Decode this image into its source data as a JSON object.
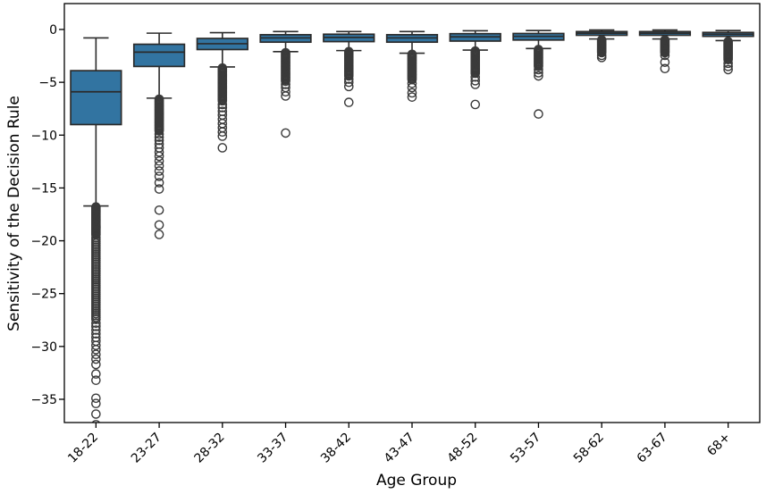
{
  "chart_data": {
    "type": "box",
    "title": "",
    "xlabel": "Age Group",
    "ylabel": "Sensitivity of the Decision Rule",
    "categories": [
      "18-22",
      "23-27",
      "28-32",
      "33-37",
      "38-42",
      "43-47",
      "48-52",
      "53-57",
      "58-62",
      "63-67",
      "68+"
    ],
    "ylim": [
      -37.2,
      2.45
    ],
    "grid": false,
    "legend": null,
    "yticks": [
      {
        "value": 0,
        "label": "0"
      },
      {
        "value": -5,
        "label": "−5"
      },
      {
        "value": -10,
        "label": "−10"
      },
      {
        "value": -15,
        "label": "−15"
      },
      {
        "value": -20,
        "label": "−20"
      },
      {
        "value": -25,
        "label": "−25"
      },
      {
        "value": -30,
        "label": "−30"
      },
      {
        "value": -35,
        "label": "−35"
      }
    ],
    "colors": {
      "box_fill": "#3274a1",
      "line": "#2b2b2b",
      "flier": "#3a3a3a",
      "axis": "#000000"
    },
    "boxes": [
      {
        "label": "18-22",
        "whisker_high": -0.8,
        "q3": -3.9,
        "median": -5.9,
        "q1": -9.0,
        "whisker_low": -16.7,
        "outlier_clusters": [
          [
            -16.8,
            -19.5,
            0.08
          ],
          [
            -19.7,
            -27.5,
            0.18
          ]
        ],
        "outlier_points": [
          -27.8,
          -28.1,
          -28.45,
          -28.8,
          -29.15,
          -29.5,
          -29.9,
          -30.3,
          -30.75,
          -31.2,
          -31.7,
          -32.6,
          -33.2,
          -34.9,
          -35.4,
          -36.4,
          -37.4
        ]
      },
      {
        "label": "23-27",
        "whisker_high": -0.35,
        "q3": -1.4,
        "median": -2.15,
        "q1": -3.5,
        "whisker_low": -6.5,
        "outlier_clusters": [
          [
            -6.6,
            -9.6,
            0.1
          ]
        ],
        "outlier_points": [
          -9.9,
          -10.2,
          -10.5,
          -10.85,
          -11.2,
          -11.6,
          -12.0,
          -12.45,
          -12.9,
          -13.4,
          -13.9,
          -14.5,
          -15.1,
          -17.1,
          -18.5,
          -19.4
        ]
      },
      {
        "label": "28-32",
        "whisker_high": -0.3,
        "q3": -0.85,
        "median": -1.35,
        "q1": -1.9,
        "whisker_low": -3.55,
        "outlier_clusters": [
          [
            -3.65,
            -6.8,
            0.1
          ]
        ],
        "outlier_points": [
          -7.1,
          -7.4,
          -7.75,
          -8.1,
          -8.5,
          -8.9,
          -9.3,
          -9.7,
          -10.1,
          -11.2
        ]
      },
      {
        "label": "33-37",
        "whisker_high": -0.2,
        "q3": -0.5,
        "median": -0.8,
        "q1": -1.2,
        "whisker_low": -2.1,
        "outlier_clusters": [
          [
            -2.2,
            -4.9,
            0.1
          ]
        ],
        "outlier_points": [
          -5.2,
          -5.5,
          -5.9,
          -6.3,
          -9.8
        ]
      },
      {
        "label": "38-42",
        "whisker_high": -0.2,
        "q3": -0.45,
        "median": -0.75,
        "q1": -1.15,
        "whisker_low": -2.0,
        "outlier_clusters": [
          [
            -2.1,
            -4.4,
            0.1
          ]
        ],
        "outlier_points": [
          -4.7,
          -5.0,
          -5.4,
          -6.9
        ]
      },
      {
        "label": "43-47",
        "whisker_high": -0.2,
        "q3": -0.5,
        "median": -0.8,
        "q1": -1.2,
        "whisker_low": -2.25,
        "outlier_clusters": [
          [
            -2.35,
            -4.8,
            0.1
          ]
        ],
        "outlier_points": [
          -5.1,
          -5.5,
          -6.0,
          -6.4
        ]
      },
      {
        "label": "48-52",
        "whisker_high": -0.12,
        "q3": -0.4,
        "median": -0.7,
        "q1": -1.1,
        "whisker_low": -1.95,
        "outlier_clusters": [
          [
            -2.05,
            -4.2,
            0.1
          ]
        ],
        "outlier_points": [
          -4.5,
          -4.85,
          -5.2,
          -7.1
        ]
      },
      {
        "label": "53-57",
        "whisker_high": -0.1,
        "q3": -0.38,
        "median": -0.65,
        "q1": -1.0,
        "whisker_low": -1.8,
        "outlier_clusters": [
          [
            -1.9,
            -3.5,
            0.1
          ]
        ],
        "outlier_points": [
          -3.8,
          -4.1,
          -4.4,
          -8.0
        ]
      },
      {
        "label": "58-62",
        "whisker_high": -0.05,
        "q3": -0.2,
        "median": -0.35,
        "q1": -0.55,
        "whisker_low": -0.9,
        "outlier_clusters": [
          [
            -1.0,
            -2.2,
            0.08
          ]
        ],
        "outlier_points": [
          -2.45,
          -2.65
        ]
      },
      {
        "label": "63-67",
        "whisker_high": -0.05,
        "q3": -0.2,
        "median": -0.35,
        "q1": -0.55,
        "whisker_low": -0.9,
        "outlier_clusters": [
          [
            -1.0,
            -2.2,
            0.08
          ]
        ],
        "outlier_points": [
          -2.45,
          -3.1,
          -3.7
        ]
      },
      {
        "label": "68+",
        "whisker_high": -0.1,
        "q3": -0.28,
        "median": -0.45,
        "q1": -0.65,
        "whisker_low": -1.05,
        "outlier_clusters": [
          [
            -1.15,
            -2.9,
            0.09
          ]
        ],
        "outlier_points": [
          -3.2,
          -3.5,
          -3.8
        ]
      }
    ]
  }
}
